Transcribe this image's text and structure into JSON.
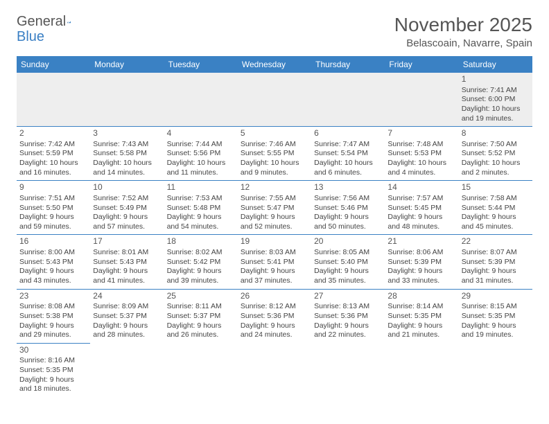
{
  "logo": {
    "text1": "General",
    "text2": "Blue"
  },
  "title": "November 2025",
  "location": "Belascoain, Navarre, Spain",
  "colors": {
    "header_bg": "#3a81c4",
    "header_text": "#ffffff",
    "cell_border": "#3a81c4",
    "empty_bg": "#eeeeee",
    "text": "#444444",
    "title_text": "#555555"
  },
  "dayHeaders": [
    "Sunday",
    "Monday",
    "Tuesday",
    "Wednesday",
    "Thursday",
    "Friday",
    "Saturday"
  ],
  "weeks": [
    [
      null,
      null,
      null,
      null,
      null,
      null,
      {
        "n": "1",
        "sr": "Sunrise: 7:41 AM",
        "ss": "Sunset: 6:00 PM",
        "d1": "Daylight: 10 hours",
        "d2": "and 19 minutes."
      }
    ],
    [
      {
        "n": "2",
        "sr": "Sunrise: 7:42 AM",
        "ss": "Sunset: 5:59 PM",
        "d1": "Daylight: 10 hours",
        "d2": "and 16 minutes."
      },
      {
        "n": "3",
        "sr": "Sunrise: 7:43 AM",
        "ss": "Sunset: 5:58 PM",
        "d1": "Daylight: 10 hours",
        "d2": "and 14 minutes."
      },
      {
        "n": "4",
        "sr": "Sunrise: 7:44 AM",
        "ss": "Sunset: 5:56 PM",
        "d1": "Daylight: 10 hours",
        "d2": "and 11 minutes."
      },
      {
        "n": "5",
        "sr": "Sunrise: 7:46 AM",
        "ss": "Sunset: 5:55 PM",
        "d1": "Daylight: 10 hours",
        "d2": "and 9 minutes."
      },
      {
        "n": "6",
        "sr": "Sunrise: 7:47 AM",
        "ss": "Sunset: 5:54 PM",
        "d1": "Daylight: 10 hours",
        "d2": "and 6 minutes."
      },
      {
        "n": "7",
        "sr": "Sunrise: 7:48 AM",
        "ss": "Sunset: 5:53 PM",
        "d1": "Daylight: 10 hours",
        "d2": "and 4 minutes."
      },
      {
        "n": "8",
        "sr": "Sunrise: 7:50 AM",
        "ss": "Sunset: 5:52 PM",
        "d1": "Daylight: 10 hours",
        "d2": "and 2 minutes."
      }
    ],
    [
      {
        "n": "9",
        "sr": "Sunrise: 7:51 AM",
        "ss": "Sunset: 5:50 PM",
        "d1": "Daylight: 9 hours",
        "d2": "and 59 minutes."
      },
      {
        "n": "10",
        "sr": "Sunrise: 7:52 AM",
        "ss": "Sunset: 5:49 PM",
        "d1": "Daylight: 9 hours",
        "d2": "and 57 minutes."
      },
      {
        "n": "11",
        "sr": "Sunrise: 7:53 AM",
        "ss": "Sunset: 5:48 PM",
        "d1": "Daylight: 9 hours",
        "d2": "and 54 minutes."
      },
      {
        "n": "12",
        "sr": "Sunrise: 7:55 AM",
        "ss": "Sunset: 5:47 PM",
        "d1": "Daylight: 9 hours",
        "d2": "and 52 minutes."
      },
      {
        "n": "13",
        "sr": "Sunrise: 7:56 AM",
        "ss": "Sunset: 5:46 PM",
        "d1": "Daylight: 9 hours",
        "d2": "and 50 minutes."
      },
      {
        "n": "14",
        "sr": "Sunrise: 7:57 AM",
        "ss": "Sunset: 5:45 PM",
        "d1": "Daylight: 9 hours",
        "d2": "and 48 minutes."
      },
      {
        "n": "15",
        "sr": "Sunrise: 7:58 AM",
        "ss": "Sunset: 5:44 PM",
        "d1": "Daylight: 9 hours",
        "d2": "and 45 minutes."
      }
    ],
    [
      {
        "n": "16",
        "sr": "Sunrise: 8:00 AM",
        "ss": "Sunset: 5:43 PM",
        "d1": "Daylight: 9 hours",
        "d2": "and 43 minutes."
      },
      {
        "n": "17",
        "sr": "Sunrise: 8:01 AM",
        "ss": "Sunset: 5:43 PM",
        "d1": "Daylight: 9 hours",
        "d2": "and 41 minutes."
      },
      {
        "n": "18",
        "sr": "Sunrise: 8:02 AM",
        "ss": "Sunset: 5:42 PM",
        "d1": "Daylight: 9 hours",
        "d2": "and 39 minutes."
      },
      {
        "n": "19",
        "sr": "Sunrise: 8:03 AM",
        "ss": "Sunset: 5:41 PM",
        "d1": "Daylight: 9 hours",
        "d2": "and 37 minutes."
      },
      {
        "n": "20",
        "sr": "Sunrise: 8:05 AM",
        "ss": "Sunset: 5:40 PM",
        "d1": "Daylight: 9 hours",
        "d2": "and 35 minutes."
      },
      {
        "n": "21",
        "sr": "Sunrise: 8:06 AM",
        "ss": "Sunset: 5:39 PM",
        "d1": "Daylight: 9 hours",
        "d2": "and 33 minutes."
      },
      {
        "n": "22",
        "sr": "Sunrise: 8:07 AM",
        "ss": "Sunset: 5:39 PM",
        "d1": "Daylight: 9 hours",
        "d2": "and 31 minutes."
      }
    ],
    [
      {
        "n": "23",
        "sr": "Sunrise: 8:08 AM",
        "ss": "Sunset: 5:38 PM",
        "d1": "Daylight: 9 hours",
        "d2": "and 29 minutes."
      },
      {
        "n": "24",
        "sr": "Sunrise: 8:09 AM",
        "ss": "Sunset: 5:37 PM",
        "d1": "Daylight: 9 hours",
        "d2": "and 28 minutes."
      },
      {
        "n": "25",
        "sr": "Sunrise: 8:11 AM",
        "ss": "Sunset: 5:37 PM",
        "d1": "Daylight: 9 hours",
        "d2": "and 26 minutes."
      },
      {
        "n": "26",
        "sr": "Sunrise: 8:12 AM",
        "ss": "Sunset: 5:36 PM",
        "d1": "Daylight: 9 hours",
        "d2": "and 24 minutes."
      },
      {
        "n": "27",
        "sr": "Sunrise: 8:13 AM",
        "ss": "Sunset: 5:36 PM",
        "d1": "Daylight: 9 hours",
        "d2": "and 22 minutes."
      },
      {
        "n": "28",
        "sr": "Sunrise: 8:14 AM",
        "ss": "Sunset: 5:35 PM",
        "d1": "Daylight: 9 hours",
        "d2": "and 21 minutes."
      },
      {
        "n": "29",
        "sr": "Sunrise: 8:15 AM",
        "ss": "Sunset: 5:35 PM",
        "d1": "Daylight: 9 hours",
        "d2": "and 19 minutes."
      }
    ],
    [
      {
        "n": "30",
        "sr": "Sunrise: 8:16 AM",
        "ss": "Sunset: 5:35 PM",
        "d1": "Daylight: 9 hours",
        "d2": "and 18 minutes."
      },
      null,
      null,
      null,
      null,
      null,
      null
    ]
  ]
}
